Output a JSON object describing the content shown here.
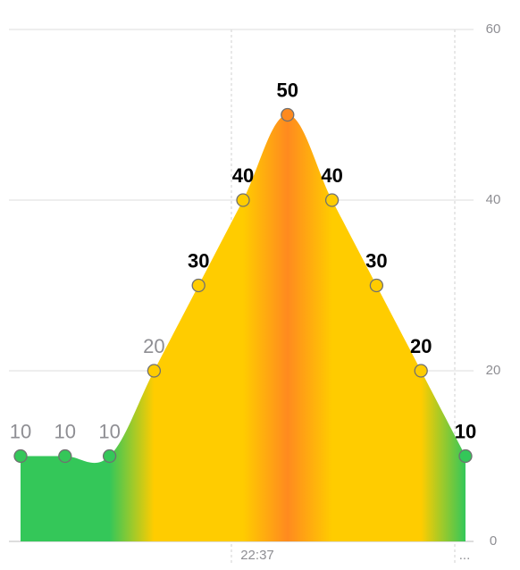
{
  "chart_data": {
    "type": "area",
    "categories": [
      null,
      null,
      null,
      null,
      null,
      null,
      null,
      null,
      null,
      null,
      null
    ],
    "x_labels": [
      "22:37",
      "..."
    ],
    "series": [
      {
        "values": [
          10,
          10,
          10,
          20,
          30,
          40,
          50,
          40,
          30,
          20,
          10
        ],
        "colors": [
          "#34c759",
          "#34c759",
          "#34c759",
          "#ffcc00",
          "#ffcc00",
          "#ffcc00",
          "#ff8a1f",
          "#ffcc00",
          "#ffcc00",
          "#ffcc00",
          "#34c759"
        ],
        "label_colors": [
          "#8e8e93",
          "#8e8e93",
          "#8e8e93",
          "#8e8e93",
          "#000000",
          "#000000",
          "#000000",
          "#000000",
          "#000000",
          "#000000",
          "#000000"
        ]
      }
    ],
    "ylim": [
      0,
      60
    ],
    "yticks": [
      0,
      20,
      40,
      60
    ],
    "grid": true
  }
}
